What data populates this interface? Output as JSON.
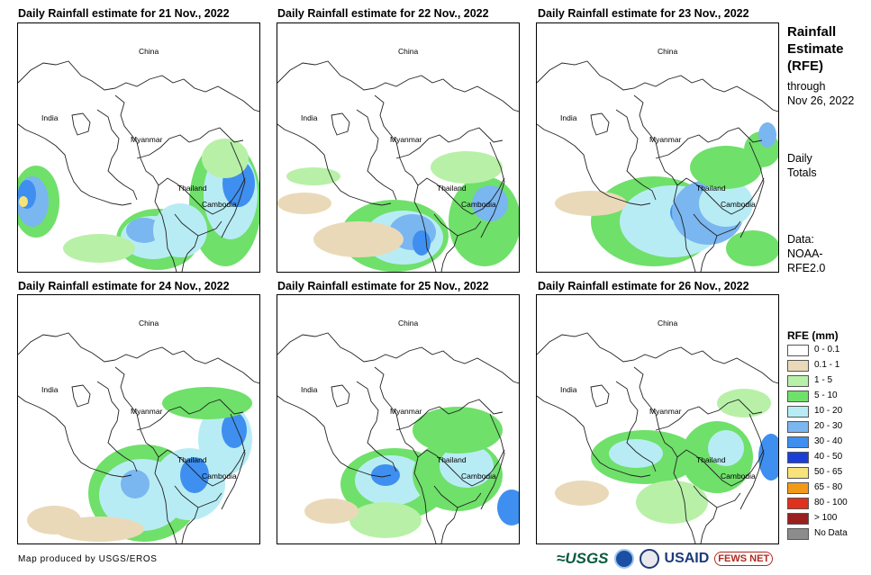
{
  "panels": [
    {
      "title": "Daily Rainfall estimate for 21 Nov., 2022",
      "labels": {
        "china": "China",
        "india": "India",
        "myanmar": "Myanmar",
        "thailand": "Thailand",
        "cambodia": "Cambodia"
      }
    },
    {
      "title": "Daily Rainfall estimate for 22 Nov., 2022",
      "labels": {
        "china": "China",
        "india": "India",
        "myanmar": "Myanmar",
        "thailand": "Thailand",
        "cambodia": "Cambodia"
      }
    },
    {
      "title": "Daily Rainfall estimate for 23 Nov., 2022",
      "labels": {
        "china": "China",
        "india": "India",
        "myanmar": "Myanmar",
        "thailand": "Thailand",
        "cambodia": "Cambodia"
      }
    },
    {
      "title": "Daily Rainfall estimate for 24 Nov., 2022",
      "labels": {
        "china": "China",
        "india": "India",
        "myanmar": "Myanmar",
        "thailand": "Thailand",
        "cambodia": "Cambodia"
      }
    },
    {
      "title": "Daily Rainfall estimate for 25 Nov., 2022",
      "labels": {
        "china": "China",
        "india": "India",
        "myanmar": "Myanmar",
        "thailand": "Thailand",
        "cambodia": "Cambodia"
      }
    },
    {
      "title": "Daily Rainfall estimate for 26 Nov., 2022",
      "labels": {
        "china": "China",
        "india": "India",
        "myanmar": "Myanmar",
        "thailand": "Thailand",
        "cambodia": "Cambodia"
      }
    }
  ],
  "sidebar": {
    "title_line1": "Rainfall",
    "title_line2": "Estimate",
    "title_line3": "(RFE)",
    "through": "through",
    "date": "Nov 26, 2022",
    "daily": "Daily",
    "totals": "Totals",
    "data_label": "Data:",
    "data_source1": "NOAA-",
    "data_source2": "RFE2.0"
  },
  "legend": {
    "title": "RFE (mm)",
    "items": [
      {
        "label": "0 - 0.1",
        "color": "#ffffff"
      },
      {
        "label": "0.1 - 1",
        "color": "#ead9b8"
      },
      {
        "label": "1 - 5",
        "color": "#b8f0a8"
      },
      {
        "label": "5 - 10",
        "color": "#6fe06a"
      },
      {
        "label": "10 - 20",
        "color": "#b8ecf5"
      },
      {
        "label": "20 - 30",
        "color": "#7ab6f0"
      },
      {
        "label": "30 - 40",
        "color": "#3e8ff0"
      },
      {
        "label": "40 - 50",
        "color": "#1b3fd6"
      },
      {
        "label": "50 - 65",
        "color": "#f7e37a"
      },
      {
        "label": "65 - 80",
        "color": "#f29a17"
      },
      {
        "label": "80 - 100",
        "color": "#e0301e"
      },
      {
        "label": "> 100",
        "color": "#9a1f1f"
      },
      {
        "label": "No Data",
        "color": "#8c8c8c"
      }
    ]
  },
  "footer": {
    "credit": "Map produced by USGS/EROS",
    "logo_usgs": "≈USGS",
    "logo_usaid": "USAID",
    "logo_fews": "FEWS NET"
  }
}
